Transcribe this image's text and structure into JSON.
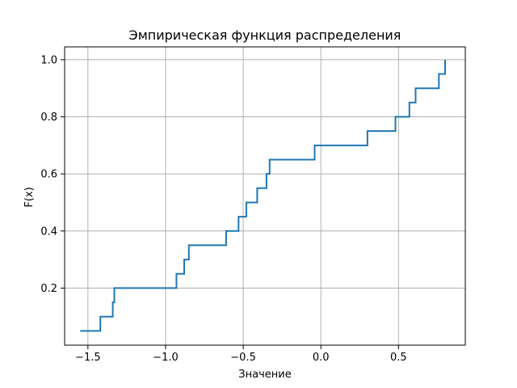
{
  "chart_data": {
    "type": "line",
    "drawstyle": "steps-post",
    "title": "Эмпирическая функция распределения",
    "xlabel": "Значение",
    "ylabel": "F(x)",
    "xlim": [
      -1.65,
      0.93
    ],
    "ylim": [
      0.0,
      1.045
    ],
    "xticks": [
      -1.5,
      -1.0,
      -0.5,
      0.0,
      0.5
    ],
    "xtick_labels": [
      "−1.5",
      "−1.0",
      "−0.5",
      "0.0",
      "0.5"
    ],
    "yticks": [
      0.2,
      0.4,
      0.6,
      0.8,
      1.0
    ],
    "ytick_labels": [
      "0.2",
      "0.4",
      "0.6",
      "0.8",
      "1.0"
    ],
    "grid": true,
    "line_color": "#1f77b4",
    "series": [
      {
        "x": [
          -1.55,
          -1.42,
          -1.34,
          -1.33,
          -0.93,
          -0.88,
          -0.85,
          -0.61,
          -0.53,
          -0.48,
          -0.41,
          -0.35,
          -0.33,
          -0.04,
          0.3,
          0.48,
          0.57,
          0.61,
          0.76,
          0.8
        ],
        "y": [
          0.05,
          0.1,
          0.15,
          0.2,
          0.25,
          0.3,
          0.35,
          0.4,
          0.45,
          0.5,
          0.55,
          0.6,
          0.65,
          0.7,
          0.75,
          0.8,
          0.85,
          0.9,
          0.95,
          1.0
        ]
      }
    ]
  }
}
